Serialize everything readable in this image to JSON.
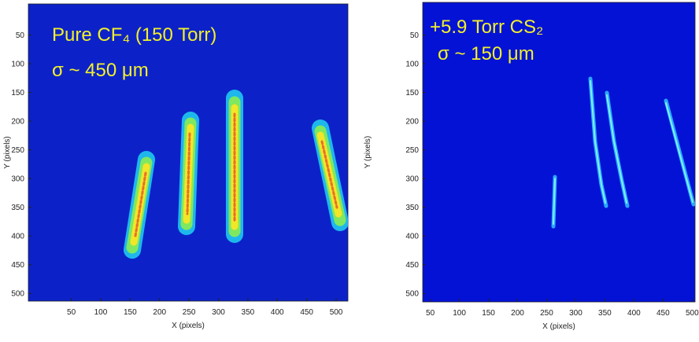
{
  "chart_data": [
    {
      "type": "image",
      "annotations": [
        "Pure CF₄ (150 Torr)",
        "σ ~ 450 μm"
      ],
      "x_label": "X (pixels)",
      "y_label": "Y (pixels)",
      "xlim": [
        -23,
        520
      ],
      "ylim": [
        0,
        512
      ],
      "xticks": [
        50,
        100,
        150,
        200,
        250,
        300,
        350,
        400,
        450,
        500
      ],
      "yticks": [
        50,
        100,
        150,
        200,
        250,
        300,
        350,
        400,
        450,
        500
      ],
      "background": "#0c22c8",
      "annotation_color": "#f2f02a"
    },
    {
      "type": "image",
      "annotations": [
        "+5.9 Torr CS₂",
        "σ ~ 150 μm"
      ],
      "x_label": "X (pixels)",
      "y_label": "Y (pixels)",
      "xlim": [
        37,
        505
      ],
      "ylim": [
        0,
        512
      ],
      "xticks": [
        50,
        100,
        150,
        200,
        250,
        300,
        350,
        400,
        450,
        500
      ],
      "yticks": [
        50,
        100,
        150,
        200,
        250,
        300,
        350,
        400,
        450,
        500
      ],
      "background": "#0412d6",
      "annotation_color": "#f2f02a"
    }
  ]
}
